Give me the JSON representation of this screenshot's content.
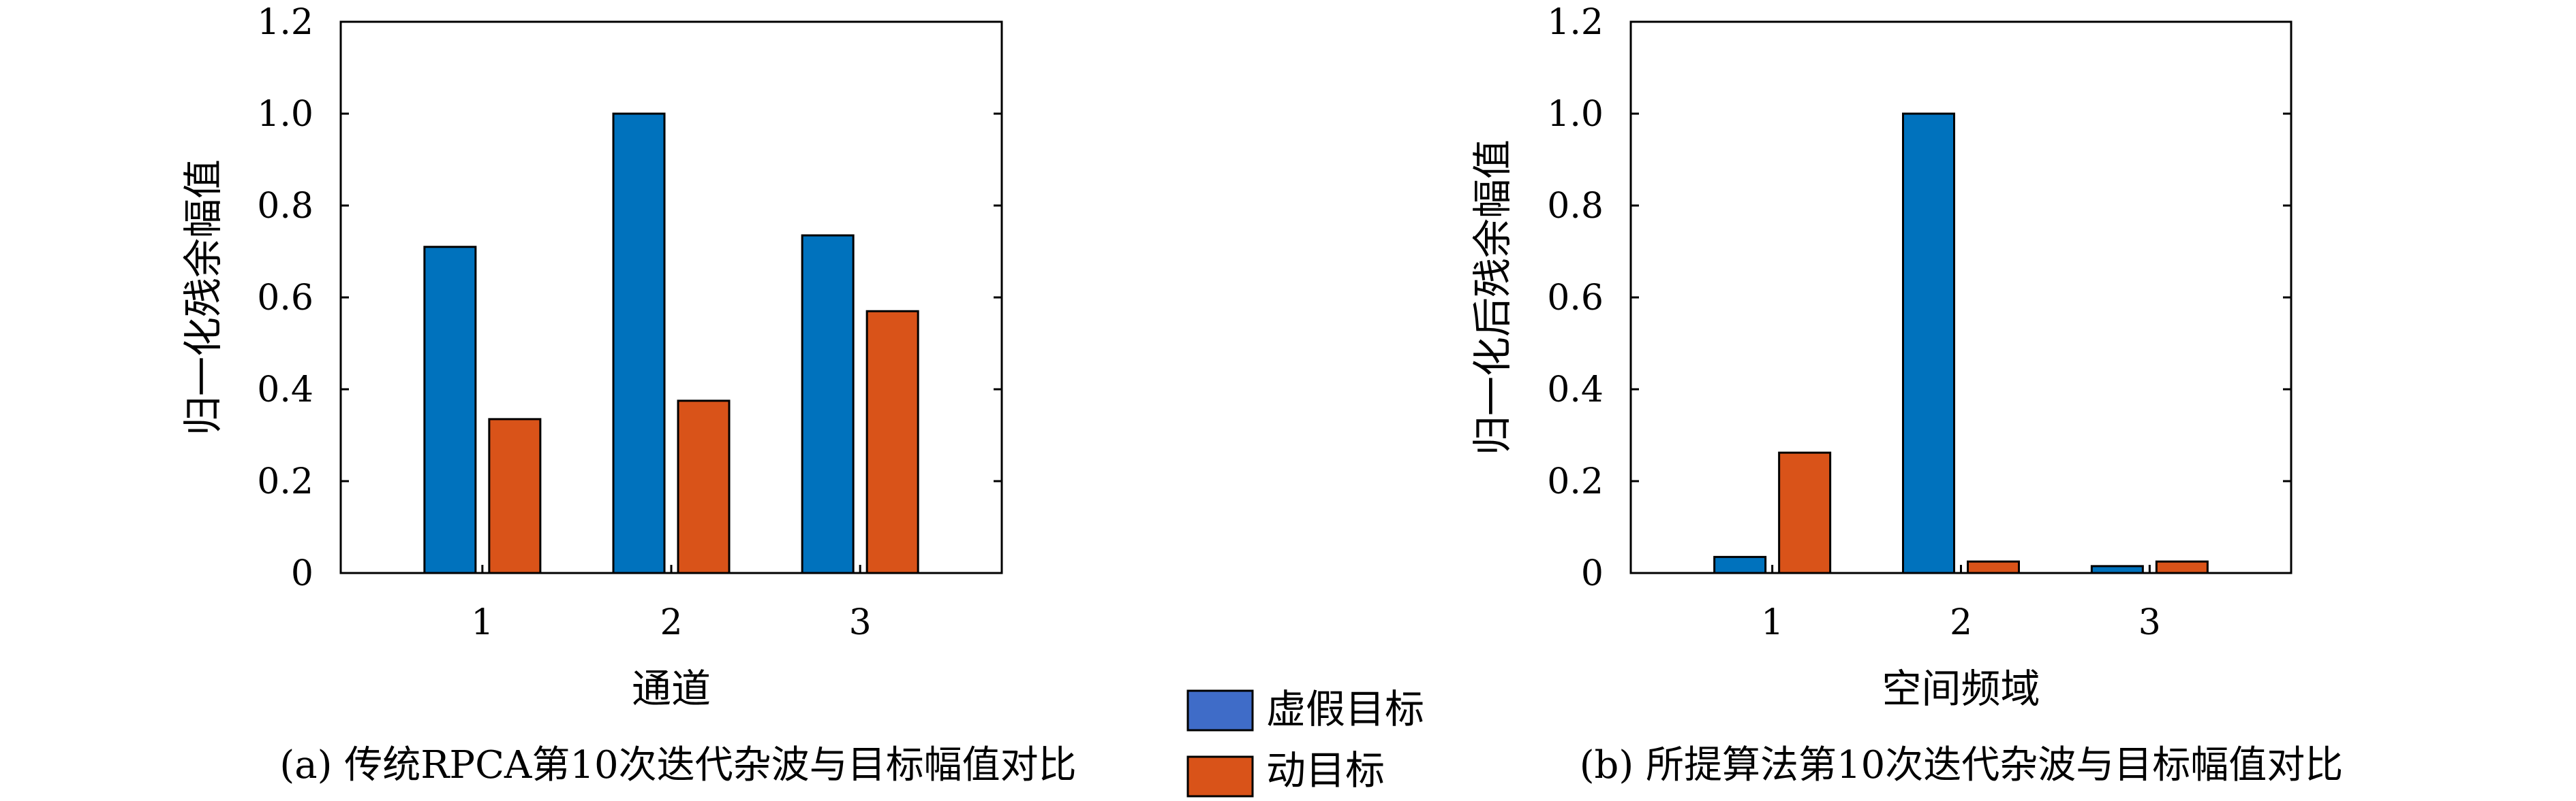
{
  "colors": {
    "blue": "#0072BD",
    "orange": "#D95319",
    "legend_blue": "#3F6CC8"
  },
  "legend": {
    "items": [
      "虚假目标",
      "动目标"
    ]
  },
  "chart_data": [
    {
      "type": "bar",
      "categories": [
        "1",
        "2",
        "3"
      ],
      "series": [
        {
          "values": [
            0.71,
            1.0,
            0.735
          ]
        },
        {
          "values": [
            0.335,
            0.375,
            0.57
          ]
        }
      ],
      "xlabel": "通道",
      "ylabel": "归一化残余幅值",
      "ylim": [
        0,
        1.2
      ],
      "yticks": [
        "0",
        "0.2",
        "0.4",
        "0.6",
        "0.8",
        "1.0",
        "1.2"
      ],
      "caption": "(a) 传统RPCA第10次迭代杂波与目标幅值对比"
    },
    {
      "type": "bar",
      "categories": [
        "1",
        "2",
        "3"
      ],
      "series": [
        {
          "values": [
            0.035,
            1.0,
            0.015
          ]
        },
        {
          "values": [
            0.262,
            0.025,
            0.025
          ]
        }
      ],
      "xlabel": "空间频域",
      "ylabel": "归一化后残余幅值",
      "ylim": [
        0,
        1.2
      ],
      "yticks": [
        "0",
        "0.2",
        "0.4",
        "0.6",
        "0.8",
        "1.0",
        "1.2"
      ],
      "caption": "(b) 所提算法第10次迭代杂波与目标幅值对比"
    }
  ]
}
